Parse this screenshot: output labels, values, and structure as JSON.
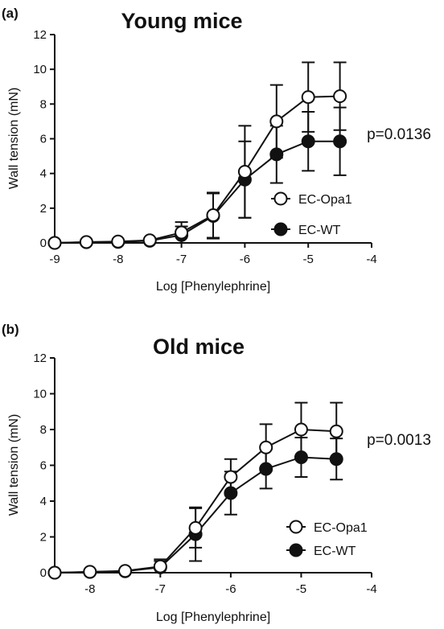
{
  "chart_data": [
    {
      "type": "line",
      "panel_label": "(a)",
      "title": "Young mice",
      "xlabel": "Log [Phenylephrine]",
      "ylabel": "Wall tension (mN)",
      "xlim": [
        -9,
        -4
      ],
      "ylim": [
        0,
        12
      ],
      "xticks": [
        "-9",
        "-8",
        "-7",
        "-6",
        "-5",
        "-4"
      ],
      "xtick_values": [
        -9,
        -8,
        -7,
        -6,
        -5,
        -4
      ],
      "yticks": [
        "0",
        "2",
        "4",
        "6",
        "8",
        "10",
        "12"
      ],
      "ytick_values": [
        0,
        2,
        4,
        6,
        8,
        10,
        12
      ],
      "annotation": "p=0.0136",
      "legend_position": "lower-right",
      "grid": false,
      "x": [
        -9,
        -8.5,
        -8,
        -7.5,
        -7,
        -6.5,
        -6,
        -5.5,
        -5,
        -4.5
      ],
      "series": [
        {
          "name": "EC-Opa1",
          "marker": "open-circle",
          "values": [
            0.0,
            0.05,
            0.08,
            0.15,
            0.6,
            1.6,
            4.1,
            7.0,
            8.4,
            8.45
          ],
          "errors": [
            0.05,
            0.05,
            0.1,
            0.15,
            0.6,
            1.3,
            2.65,
            2.1,
            2.0,
            1.95
          ]
        },
        {
          "name": "EC-WT",
          "marker": "filled-circle",
          "values": [
            0.0,
            0.04,
            0.06,
            0.12,
            0.45,
            1.55,
            3.65,
            5.1,
            5.85,
            5.85
          ],
          "errors": [
            0.05,
            0.05,
            0.1,
            0.1,
            0.5,
            1.3,
            2.2,
            1.65,
            1.7,
            1.95
          ]
        }
      ]
    },
    {
      "type": "line",
      "panel_label": "(b)",
      "title": "Old mice",
      "xlabel": "Log [Phenylephrine]",
      "ylabel": "Wall tension (mN)",
      "xlim": [
        -8.5,
        -4
      ],
      "ylim": [
        0,
        12
      ],
      "xticks": [
        "-8",
        "-7",
        "-6",
        "-5",
        "-4"
      ],
      "xtick_values": [
        -8,
        -7,
        -6,
        -5,
        -4
      ],
      "yticks": [
        "0",
        "2",
        "4",
        "6",
        "8",
        "10",
        "12"
      ],
      "ytick_values": [
        0,
        2,
        4,
        6,
        8,
        10,
        12
      ],
      "annotation": "p=0.0013",
      "legend_position": "lower-right",
      "grid": false,
      "x": [
        -8.5,
        -8,
        -7.5,
        -7,
        -6.5,
        -6,
        -5.5,
        -5,
        -4.5
      ],
      "series": [
        {
          "name": "EC-Opa1",
          "marker": "open-circle",
          "values": [
            0.0,
            0.05,
            0.1,
            0.35,
            2.5,
            5.35,
            7.0,
            8.0,
            7.9
          ],
          "errors": [
            0.05,
            0.05,
            0.1,
            0.4,
            1.1,
            1.0,
            1.3,
            1.5,
            1.6
          ]
        },
        {
          "name": "EC-WT",
          "marker": "filled-circle",
          "values": [
            0.0,
            0.04,
            0.08,
            0.3,
            2.15,
            4.45,
            5.8,
            6.45,
            6.35
          ],
          "errors": [
            0.05,
            0.05,
            0.1,
            0.35,
            1.5,
            1.2,
            1.1,
            1.1,
            1.15
          ]
        }
      ]
    }
  ],
  "colors": {
    "ink": "#111111",
    "open_fill": "#ffffff",
    "filled": "#111111"
  }
}
